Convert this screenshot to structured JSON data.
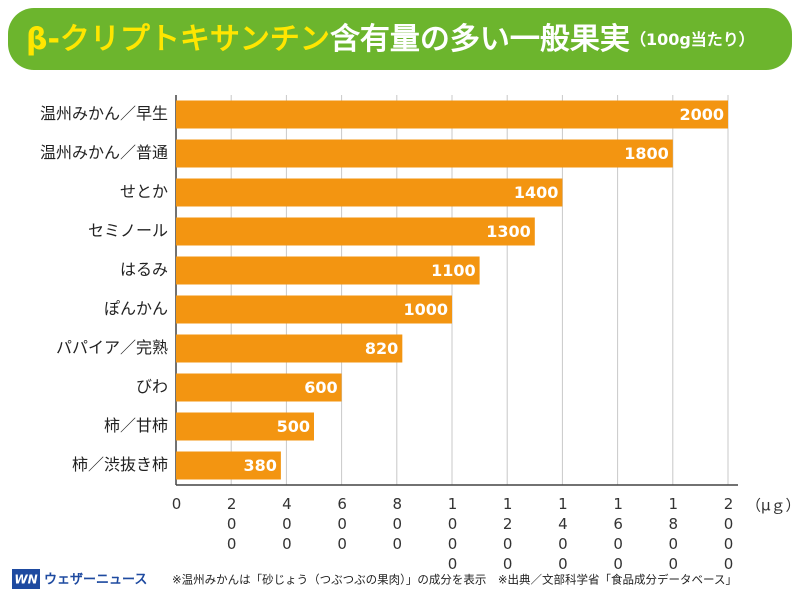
{
  "chart_data": {
    "type": "barh",
    "title": {
      "highlight": "β-クリプトキサンチン",
      "main": "含有量の多い一般果実",
      "note": "（100g当たり）"
    },
    "categories": [
      "温州みかん／早生",
      "温州みかん／普通",
      "せとか",
      "セミノール",
      "はるみ",
      "ぽんかん",
      "パパイア／完熟",
      "びわ",
      "柿／甘柿",
      "柿／渋抜き柿"
    ],
    "values": [
      2000,
      1800,
      1400,
      1300,
      1100,
      1000,
      820,
      600,
      500,
      380
    ],
    "color": "#f39511",
    "xlim": [
      0,
      2000
    ],
    "xticks": [
      0,
      200,
      400,
      600,
      800,
      1000,
      1200,
      1400,
      1600,
      1800,
      2000
    ],
    "x_unit": "（μｇ）",
    "grid": true,
    "brand": {
      "logo": "WN",
      "name": "ウェザーニュース"
    },
    "note": "※温州みかんは「砂じょう（つぶつぶの果肉）」の成分を表示　※出典／文部科学省「食品成分データベース」"
  }
}
